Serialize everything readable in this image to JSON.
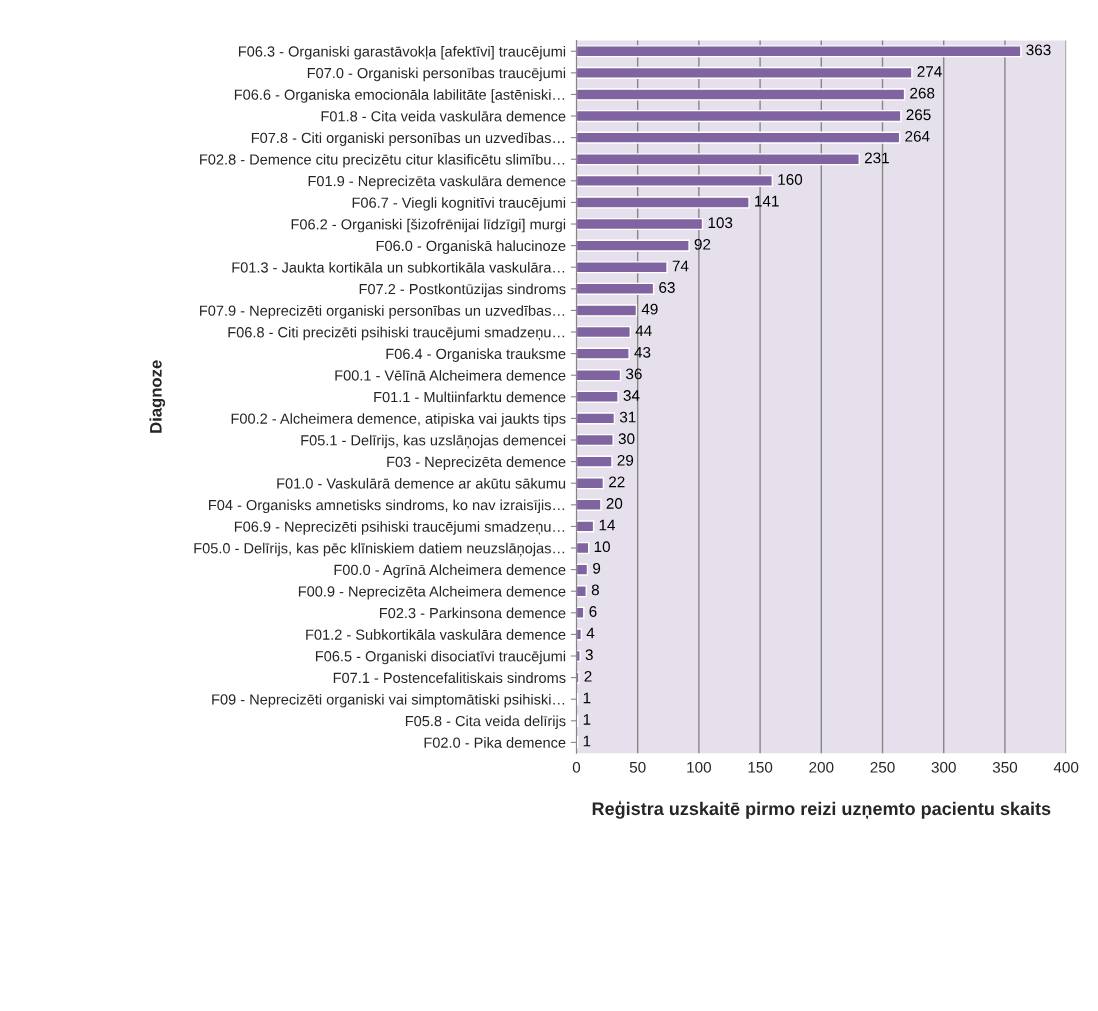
{
  "chart_data": {
    "type": "bar",
    "orientation": "horizontal",
    "xlabel": "Reģistra uzskaitē pirmo reizi uzņemto pacientu skaits",
    "ylabel": "Diagnoze",
    "categories": [
      "F06.3 - Organiski garastāvokļa [afektīvi] traucējumi",
      "F07.0 - Organiski personības traucējumi",
      "F06.6 - Organiska emocionāla labilitāte [astēniski…",
      "F01.8 - Cita veida vaskulāra demence",
      "F07.8 - Citi organiski personības un uzvedības…",
      "F02.8 - Demence citu precizētu citur klasificētu slimību…",
      "F01.9 - Neprecizēta vaskulāra demence",
      "F06.7 - Viegli kognitīvi traucējumi",
      "F06.2 - Organiski [šizofrēnijai līdzīgi] murgi",
      "F06.0 - Organiskā halucinoze",
      "F01.3 - Jaukta kortikāla un subkortikāla vaskulāra…",
      "F07.2 - Postkontūzijas sindroms",
      "F07.9 - Neprecizēti organiski personības un uzvedības…",
      "F06.8 - Citi precizēti psihiski traucējumi smadzeņu…",
      "F06.4 - Organiska trauksme",
      "F00.1 - Vēlīnā Alcheimera demence",
      "F01.1 - Multiinfarktu demence",
      "F00.2 - Alcheimera demence, atipiska vai jaukts tips",
      "F05.1 - Delīrijs, kas uzslāņojas demencei",
      "F03 - Neprecizēta demence",
      "F01.0 - Vaskulārā demence ar akūtu sākumu",
      "F04 - Organisks amnetisks sindroms, ko nav izraisījis…",
      "F06.9 - Neprecizēti psihiski traucējumi smadzeņu…",
      "F05.0 - Delīrijs, kas pēc klīniskiem datiem neuzslāņojas…",
      "F00.0 - Agrīnā Alcheimera demence",
      "F00.9 - Neprecizēta Alcheimera demence",
      "F02.3 - Parkinsona demence",
      "F01.2 - Subkortikāla vaskulāra demence",
      "F06.5 - Organiski disociatīvi traucējumi",
      "F07.1 - Postencefalitiskais sindroms",
      "F09 - Neprecizēti organiski vai simptomātiski psihiski…",
      "F05.8 - Cita veida delīrijs",
      "F02.0 - Pika demence"
    ],
    "values": [
      363,
      274,
      268,
      265,
      264,
      231,
      160,
      141,
      103,
      92,
      74,
      63,
      49,
      44,
      43,
      36,
      34,
      31,
      30,
      29,
      22,
      20,
      14,
      10,
      9,
      8,
      6,
      4,
      3,
      2,
      1,
      1,
      1
    ],
    "color": "#8064a2",
    "xlim": [
      0,
      400
    ],
    "xticks": [
      0,
      50,
      100,
      150,
      200,
      250,
      300,
      350,
      400
    ],
    "grid": "x",
    "data_labels": true
  }
}
